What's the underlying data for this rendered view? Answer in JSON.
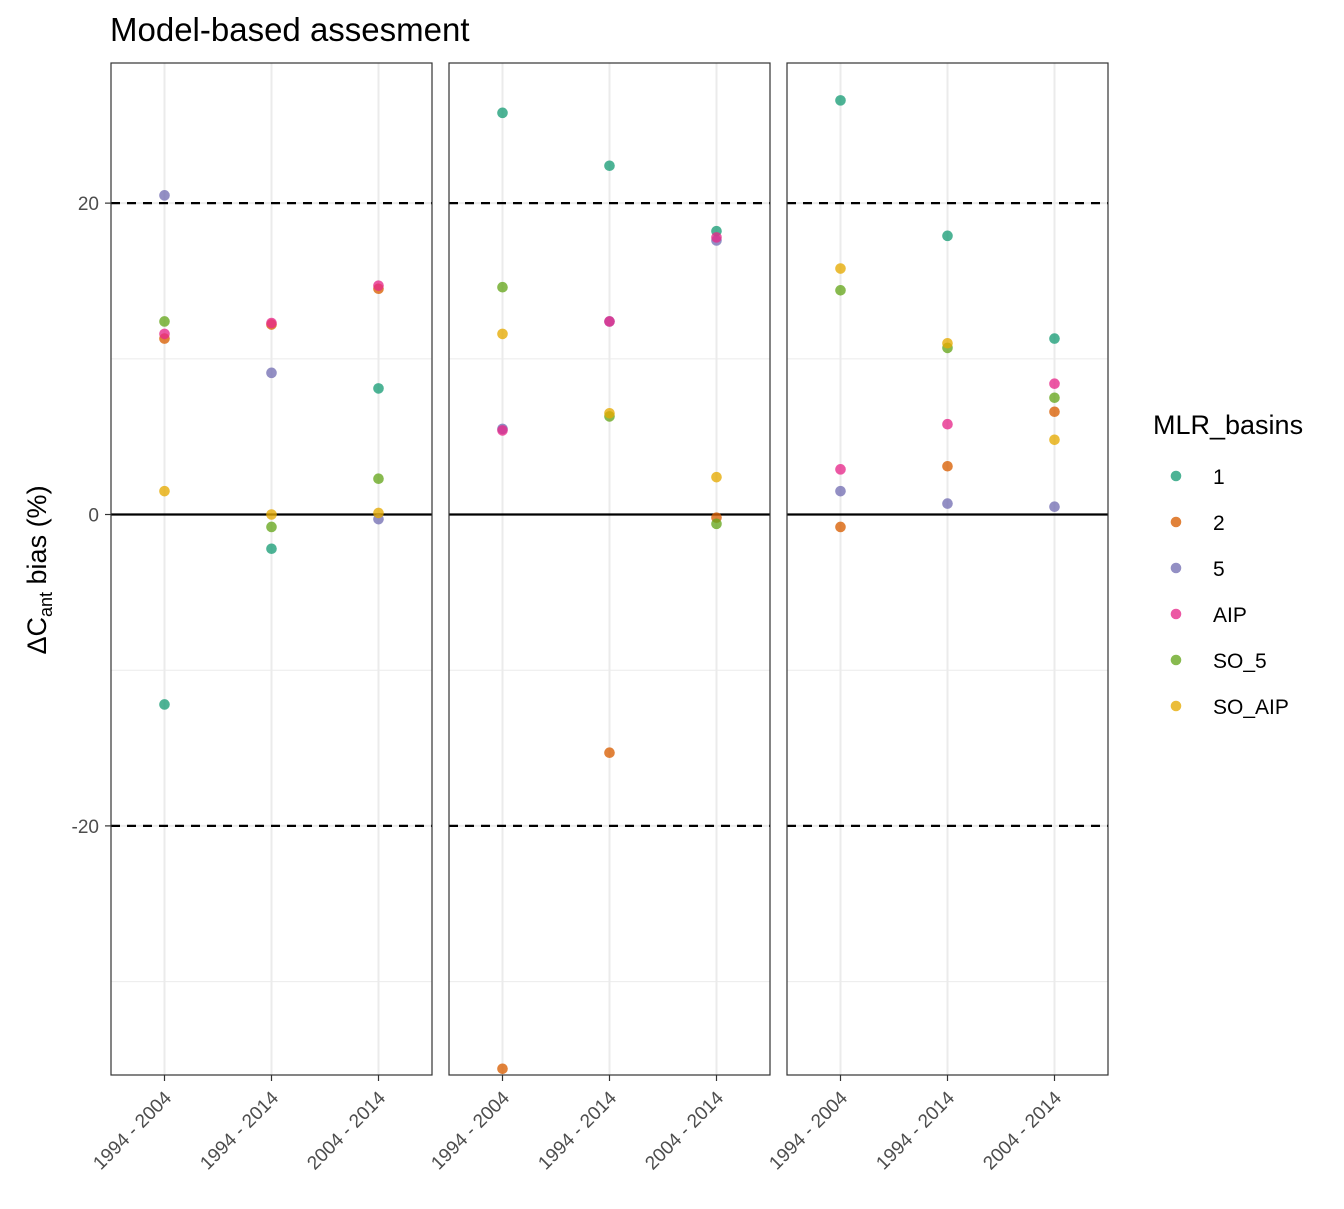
{
  "chart_data": {
    "type": "scatter",
    "title": "Model-based assesment",
    "ylabel": {
      "prefix": "ΔC",
      "subscript": "ant",
      "suffix": " bias (%)"
    },
    "ylim": [
      -36,
      29
    ],
    "y_ticks": [
      20,
      0,
      -20
    ],
    "y_tick_labels": [
      "20",
      "0",
      "-20"
    ],
    "y_minor_gridlines": [
      10,
      -10,
      -30
    ],
    "reference_lines": {
      "solid": [
        0
      ],
      "dashed": [
        20,
        -20
      ]
    },
    "categories": [
      "1994 - 2004",
      "1994 - 2014",
      "2004 - 2014"
    ],
    "grid": true,
    "legend": {
      "title": "MLR_basins",
      "position": "right",
      "entries": [
        {
          "label": "1",
          "color": "#1B9E77"
        },
        {
          "label": "2",
          "color": "#D95F02"
        },
        {
          "label": "5",
          "color": "#7570B3"
        },
        {
          "label": "AIP",
          "color": "#E7298A"
        },
        {
          "label": "SO_5",
          "color": "#66A61E"
        },
        {
          "label": "SO_AIP",
          "color": "#E6AB02"
        }
      ]
    },
    "panels": [
      {
        "series": [
          {
            "name": "1",
            "values": [
              -12.2,
              -2.2,
              8.1
            ]
          },
          {
            "name": "2",
            "values": [
              11.3,
              12.2,
              14.5
            ]
          },
          {
            "name": "5",
            "values": [
              20.5,
              9.1,
              -0.3
            ]
          },
          {
            "name": "AIP",
            "values": [
              11.6,
              12.3,
              14.7
            ]
          },
          {
            "name": "SO_5",
            "values": [
              12.4,
              -0.8,
              2.3
            ]
          },
          {
            "name": "SO_AIP",
            "values": [
              1.5,
              0.0,
              0.1
            ]
          }
        ]
      },
      {
        "series": [
          {
            "name": "1",
            "values": [
              25.8,
              22.4,
              18.2
            ]
          },
          {
            "name": "2",
            "values": [
              -35.6,
              -15.3,
              -0.2
            ]
          },
          {
            "name": "5",
            "values": [
              5.5,
              12.4,
              17.6
            ]
          },
          {
            "name": "AIP",
            "values": [
              5.4,
              12.4,
              17.8
            ]
          },
          {
            "name": "SO_5",
            "values": [
              14.6,
              6.3,
              -0.6
            ]
          },
          {
            "name": "SO_AIP",
            "values": [
              11.6,
              6.5,
              2.4
            ]
          }
        ]
      },
      {
        "series": [
          {
            "name": "1",
            "values": [
              26.6,
              17.9,
              11.3
            ]
          },
          {
            "name": "2",
            "values": [
              -0.8,
              3.1,
              6.6
            ]
          },
          {
            "name": "5",
            "values": [
              1.5,
              0.7,
              0.5
            ]
          },
          {
            "name": "AIP",
            "values": [
              2.9,
              5.8,
              8.4
            ]
          },
          {
            "name": "SO_5",
            "values": [
              14.4,
              10.7,
              7.5
            ]
          },
          {
            "name": "SO_AIP",
            "values": [
              15.8,
              11.0,
              4.8
            ]
          }
        ]
      }
    ]
  }
}
